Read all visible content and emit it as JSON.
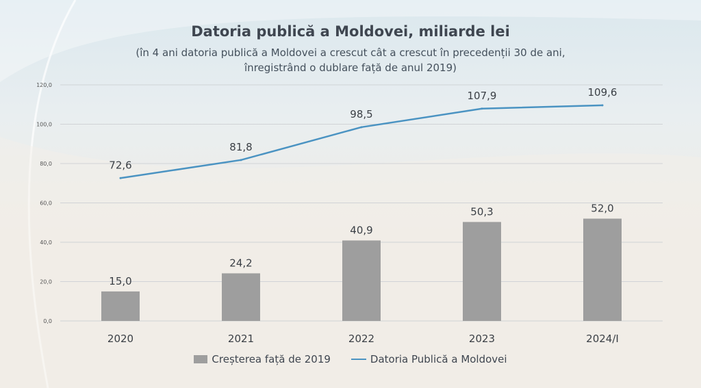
{
  "chart_data": {
    "type": "bar+line",
    "title": "Datoria publică a Moldovei, miliarde lei",
    "subtitle_lines": [
      "(în 4 ani datoria publică a Moldovei a crescut cât a crescut în precedenții 30 de ani,",
      "înregistrând o dublare față de anul 2019)"
    ],
    "categories": [
      "2020",
      "2021",
      "2022",
      "2023",
      "2024/I"
    ],
    "series": [
      {
        "name": "Creșterea față de 2019",
        "type": "bar",
        "color": "#9e9e9e",
        "values": [
          15.0,
          24.2,
          40.9,
          50.3,
          52.0
        ],
        "labels": [
          "15,0",
          "24,2",
          "40,9",
          "50,3",
          "52,0"
        ]
      },
      {
        "name": "Datoria Publică a Moldovei",
        "type": "line",
        "color": "#4a93c2",
        "values": [
          72.6,
          81.8,
          98.5,
          107.9,
          109.6
        ],
        "labels": [
          "72,6",
          "81,8",
          "98,5",
          "107,9",
          "109,6"
        ]
      }
    ],
    "y_ticks": [
      "0,0",
      "20,0",
      "40,0",
      "60,0",
      "80,0",
      "100,0",
      "120,0"
    ],
    "ylim": [
      0,
      120
    ],
    "grid": true,
    "legend": "bottom"
  }
}
